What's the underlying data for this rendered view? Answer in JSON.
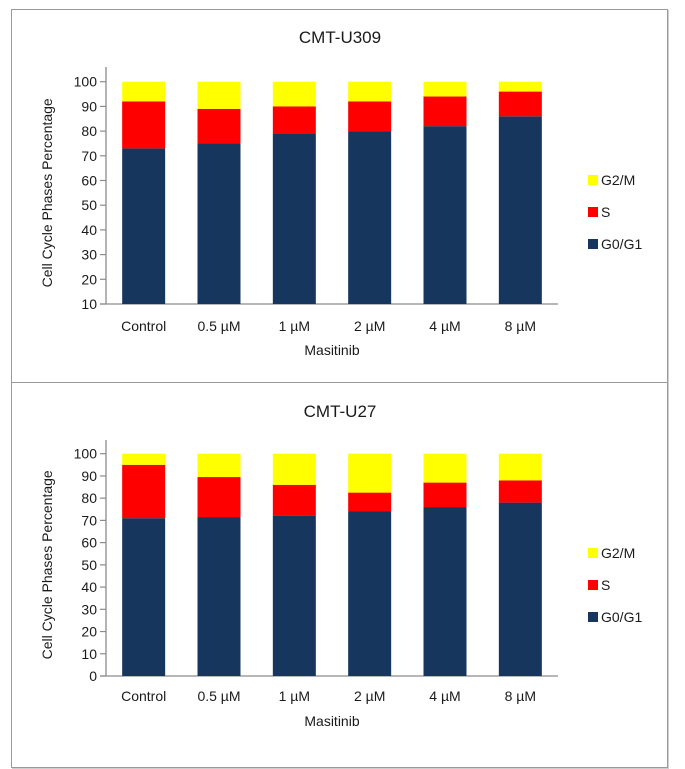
{
  "chart_data": [
    {
      "type": "bar",
      "stacked": true,
      "title": "CMT-U309",
      "xlabel": "Masitinib",
      "ylabel": "Cell Cycle Phases Percentage",
      "categories": [
        "Control",
        "0.5 µM",
        "1 µM",
        "2 µM",
        "4 µM",
        "8 µM"
      ],
      "ylim": [
        10,
        100
      ],
      "yticks": [
        10,
        20,
        30,
        40,
        50,
        60,
        70,
        80,
        90,
        100
      ],
      "grid": false,
      "legend_position": "right",
      "series": [
        {
          "name": "G0/G1",
          "color": "#17365D",
          "values": [
            73,
            75,
            79,
            80,
            82,
            86
          ]
        },
        {
          "name": "S",
          "color": "#FF0000",
          "values": [
            19,
            14,
            11,
            12,
            12,
            10
          ]
        },
        {
          "name": "G2/M",
          "color": "#FFFF00",
          "values": [
            8,
            11,
            10,
            8,
            6,
            4
          ]
        }
      ],
      "legend_order": [
        "G2/M",
        "S",
        "G0/G1"
      ]
    },
    {
      "type": "bar",
      "stacked": true,
      "title": "CMT-U27",
      "xlabel": "Masitinib",
      "ylabel": "Cell Cycle Phases Percentage",
      "categories": [
        "Control",
        "0.5 µM",
        "1 µM",
        "2 µM",
        "4 µM",
        "8 µM"
      ],
      "ylim": [
        0,
        100
      ],
      "yticks": [
        0,
        10,
        20,
        30,
        40,
        50,
        60,
        70,
        80,
        90,
        100
      ],
      "grid": false,
      "legend_position": "right",
      "series": [
        {
          "name": "G0/G1",
          "color": "#17365D",
          "values": [
            71,
            71.5,
            72,
            74,
            76,
            78
          ]
        },
        {
          "name": "S",
          "color": "#FF0000",
          "values": [
            24,
            18,
            14,
            8.5,
            11,
            10
          ]
        },
        {
          "name": "G2/M",
          "color": "#FFFF00",
          "values": [
            5,
            10.5,
            14,
            17.5,
            13,
            12
          ]
        }
      ],
      "legend_order": [
        "G2/M",
        "S",
        "G0/G1"
      ]
    }
  ]
}
